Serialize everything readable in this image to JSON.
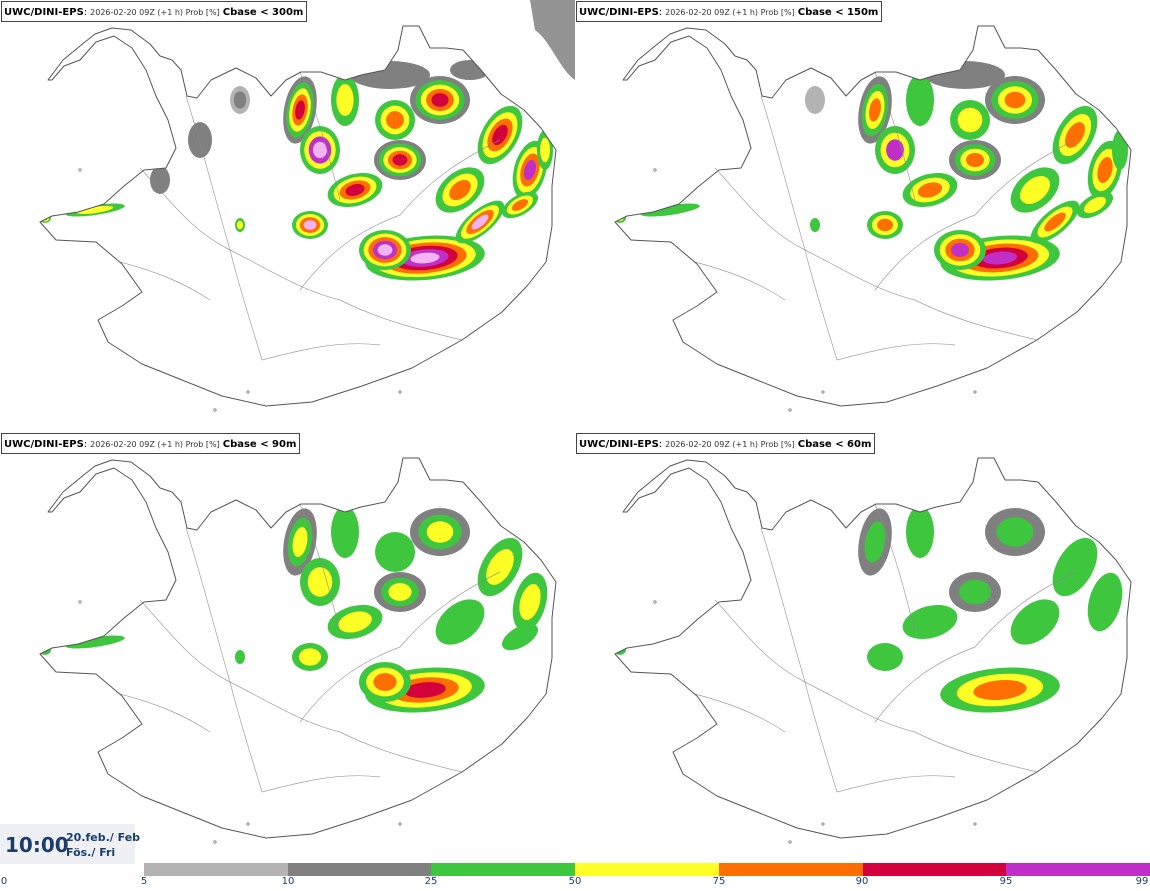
{
  "panels": [
    {
      "model": "UWC/DINI-EPS",
      "run": "2026-02-20 09Z (+1 h) Prob [%]",
      "param": "Cbase < 300m",
      "level": 4
    },
    {
      "model": "UWC/DINI-EPS",
      "run": "2026-02-20 09Z (+1 h) Prob [%]",
      "param": "Cbase < 150m",
      "level": 3
    },
    {
      "model": "UWC/DINI-EPS",
      "run": "2026-02-20 09Z (+1 h) Prob [%]",
      "param": "Cbase < 90m",
      "level": 2
    },
    {
      "model": "UWC/DINI-EPS",
      "run": "2026-02-20 09Z (+1 h) Prob [%]",
      "param": "Cbase < 60m",
      "level": 1
    }
  ],
  "valid_time": {
    "time": "10:00",
    "date": "20.feb./ Feb",
    "weekday": "Fös./ Fri"
  },
  "colorbar": {
    "bounds": [
      "0",
      "5",
      "10",
      "25",
      "50",
      "75",
      "90",
      "95",
      "99"
    ],
    "colors": [
      "#ffffff",
      "#b3b3b3",
      "#808080",
      "#3ec73e",
      "#ffff26",
      "#ff6f00",
      "#d2003c",
      "#c030c8",
      "#f4b4f4"
    ]
  },
  "colors": {
    "coast": "#555555",
    "borders": "#888888"
  }
}
